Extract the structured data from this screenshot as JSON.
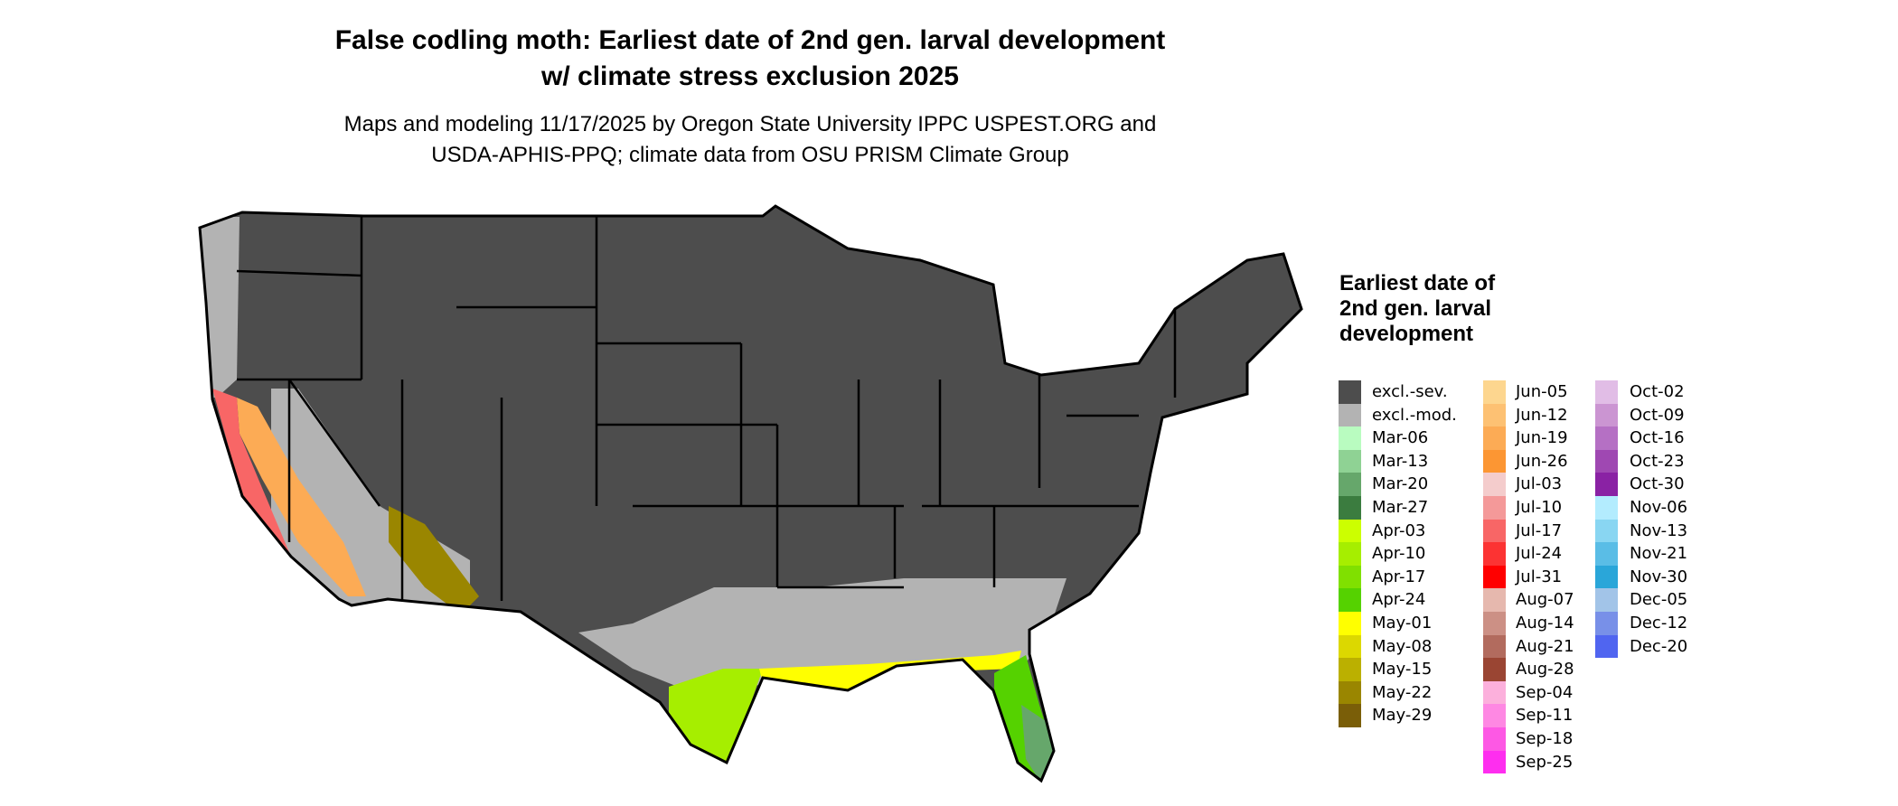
{
  "title": [
    "False codling moth: Earliest date of 2nd gen. larval development",
    "w/ climate stress exclusion 2025"
  ],
  "subtitle": [
    "Maps and modeling 11/17/2025 by Oregon State University IPPC USPEST.ORG and",
    "USDA-APHIS-PPQ; climate data from OSU PRISM Climate Group"
  ],
  "map": {
    "region": "Contiguous United States",
    "base_color": "#4d4d4d",
    "state_border_color": "#000000"
  },
  "legend": {
    "title": "Earliest date of 2nd gen. larval development",
    "items": [
      {
        "label": "excl.-sev.",
        "color": "#4d4d4d"
      },
      {
        "label": "excl.-mod.",
        "color": "#b3b3b3"
      },
      {
        "label": "Mar-06",
        "color": "#b9fcc0"
      },
      {
        "label": "Mar-13",
        "color": "#8fd294"
      },
      {
        "label": "Mar-20",
        "color": "#66a76b"
      },
      {
        "label": "Mar-27",
        "color": "#3b7c3f"
      },
      {
        "label": "Apr-03",
        "color": "#ccff00"
      },
      {
        "label": "Apr-10",
        "color": "#a6ee00"
      },
      {
        "label": "Apr-17",
        "color": "#80e000"
      },
      {
        "label": "Apr-24",
        "color": "#55d200"
      },
      {
        "label": "May-01",
        "color": "#ffff00"
      },
      {
        "label": "May-08",
        "color": "#dcd800"
      },
      {
        "label": "May-15",
        "color": "#bbb000"
      },
      {
        "label": "May-22",
        "color": "#9a8600"
      },
      {
        "label": "May-29",
        "color": "#7a5e08"
      },
      {
        "label": "Jun-05",
        "color": "#fdd68f"
      },
      {
        "label": "Jun-12",
        "color": "#fdc173"
      },
      {
        "label": "Jun-19",
        "color": "#fcab55"
      },
      {
        "label": "Jun-26",
        "color": "#fc9633"
      },
      {
        "label": "Jul-03",
        "color": "#f4cccc"
      },
      {
        "label": "Jul-10",
        "color": "#f49999"
      },
      {
        "label": "Jul-17",
        "color": "#f86666"
      },
      {
        "label": "Jul-24",
        "color": "#fc3333"
      },
      {
        "label": "Jul-31",
        "color": "#ff0000"
      },
      {
        "label": "Aug-07",
        "color": "#e6b8ae"
      },
      {
        "label": "Aug-14",
        "color": "#cc9085"
      },
      {
        "label": "Aug-21",
        "color": "#b26b5e"
      },
      {
        "label": "Aug-28",
        "color": "#9a4533"
      },
      {
        "label": "Sep-04",
        "color": "#fcb0dc"
      },
      {
        "label": "Sep-11",
        "color": "#fe88e3"
      },
      {
        "label": "Sep-18",
        "color": "#fd58e4"
      },
      {
        "label": "Sep-25",
        "color": "#fe2eef"
      },
      {
        "label": "Oct-02",
        "color": "#e1bde6"
      },
      {
        "label": "Oct-09",
        "color": "#cb95d2"
      },
      {
        "label": "Oct-16",
        "color": "#b570c4"
      },
      {
        "label": "Oct-23",
        "color": "#9f48b2"
      },
      {
        "label": "Oct-30",
        "color": "#8a22a4"
      },
      {
        "label": "Nov-06",
        "color": "#b3ecfe"
      },
      {
        "label": "Nov-13",
        "color": "#89d6f2"
      },
      {
        "label": "Nov-21",
        "color": "#5abde6"
      },
      {
        "label": "Nov-30",
        "color": "#2aa6d9"
      },
      {
        "label": "Dec-05",
        "color": "#a2c4e8"
      },
      {
        "label": "Dec-12",
        "color": "#7890e8"
      },
      {
        "label": "Dec-20",
        "color": "#5065f0"
      }
    ]
  }
}
